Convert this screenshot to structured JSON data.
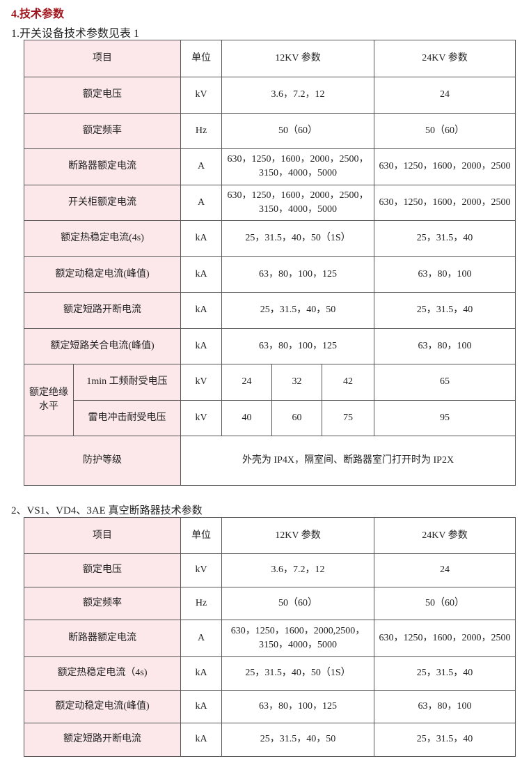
{
  "heading": "4.技术参数",
  "table1": {
    "caption": "1.开关设备技术参数见表 1",
    "header": [
      "项目",
      "单位",
      "12KV 参数",
      "24KV 参数"
    ],
    "rows": [
      [
        "额定电压",
        "kV",
        "3.6，7.2，12",
        "24"
      ],
      [
        "额定频率",
        "Hz",
        "50（60）",
        "50（60）"
      ],
      [
        "断路器额定电流",
        "A",
        "630，1250，1600，2000，2500，3150，4000，5000",
        "630，1250，1600，2000，2500"
      ],
      [
        "开关柜额定电流",
        "A",
        "630，1250，1600，2000，2500，3150，4000，5000",
        "630，1250，1600，2000，2500"
      ],
      [
        "额定热稳定电流(4s)",
        "kA",
        "25，31.5，40，50（1S）",
        "25，31.5，40"
      ],
      [
        "额定动稳定电流(峰值)",
        "kA",
        "63，80，100，125",
        "63，80，100"
      ],
      [
        "额定短路开断电流",
        "kA",
        "25，31.5，40，50",
        "25，31.5，40"
      ],
      [
        "额定短路关合电流(峰值)",
        "kA",
        "63，80，100，125",
        "63，80，100"
      ]
    ],
    "insulation": {
      "label": "额定绝缘水平",
      "rows": [
        {
          "name": "1min 工频耐受电压",
          "unit": "kV",
          "v12": [
            "24",
            "32",
            "42"
          ],
          "v24": "65"
        },
        {
          "name": "雷电冲击耐受电压",
          "unit": "kV",
          "v12": [
            "40",
            "60",
            "75"
          ],
          "v24": "95"
        }
      ]
    },
    "protection": {
      "label": "防护等级",
      "value": "外壳为 IP4X，隔室间、断路器室门打开时为 IP2X"
    }
  },
  "table2": {
    "caption": "2、VS1、VD4、3AE 真空断路器技术参数",
    "header": [
      "项目",
      "单位",
      "12KV 参数",
      "24KV 参数"
    ],
    "rows": [
      [
        "额定电压",
        "kV",
        "3.6，7.2，12",
        "24"
      ],
      [
        "额定频率",
        "Hz",
        "50（60）",
        "50（60）"
      ],
      [
        "断路器额定电流",
        "A",
        "630，1250，1600，2000,2500，3150，4000，5000",
        "630，1250，1600，2000，2500"
      ],
      [
        "额定热稳定电流（4s)",
        "kA",
        "25，31.5，40，50（1S）",
        "25，31.5，40"
      ],
      [
        "额定动稳定电流(峰值)",
        "kA",
        "63，80，100，125",
        "63，80，100"
      ],
      [
        "额定短路开断电流",
        "kA",
        "25，31.5，40，50",
        "25，31.5，40"
      ]
    ]
  },
  "colors": {
    "heading": "#a0141e",
    "label_bg": "#fce8ea"
  }
}
